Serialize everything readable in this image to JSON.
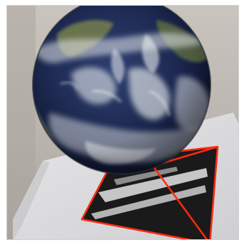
{
  "scene": {
    "background_color": "#b9b4ad",
    "table_color": "#d9d9db",
    "marker_color": "#1a1a1a",
    "marker_stripe_color": "#d8d8d8",
    "outline_color": "#ff2a10",
    "globe_ocean_color": "#1b2750",
    "globe_cloud_color": "#e8ecef",
    "globe_land_color": "#6f7a4e"
  },
  "objects": {
    "globe": "earth-globe",
    "marker": "ar-tracking-marker",
    "outline": "marker-detection-outline"
  }
}
